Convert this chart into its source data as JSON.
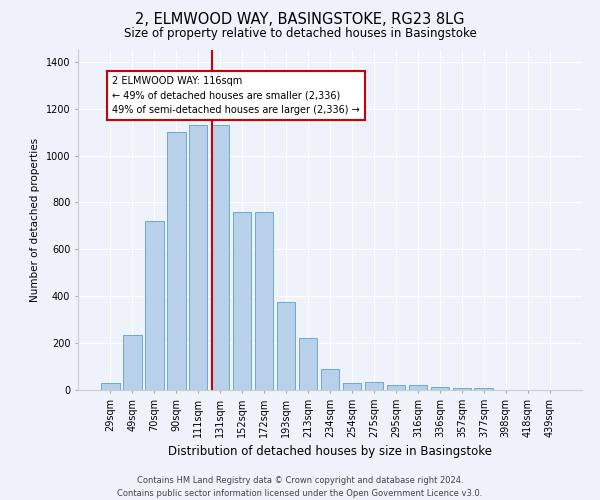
{
  "title_line1": "2, ELMWOOD WAY, BASINGSTOKE, RG23 8LG",
  "title_line2": "Size of property relative to detached houses in Basingstoke",
  "xlabel": "Distribution of detached houses by size in Basingstoke",
  "ylabel": "Number of detached properties",
  "categories": [
    "29sqm",
    "49sqm",
    "70sqm",
    "90sqm",
    "111sqm",
    "131sqm",
    "152sqm",
    "172sqm",
    "193sqm",
    "213sqm",
    "234sqm",
    "254sqm",
    "275sqm",
    "295sqm",
    "316sqm",
    "336sqm",
    "357sqm",
    "377sqm",
    "398sqm",
    "418sqm",
    "439sqm"
  ],
  "values": [
    28,
    235,
    720,
    1100,
    1130,
    1130,
    760,
    760,
    375,
    220,
    90,
    28,
    35,
    20,
    20,
    13,
    8,
    8,
    0,
    0,
    0
  ],
  "bar_color": "#b8d0ea",
  "bar_edge_color": "#6aaad4",
  "vline_x": 4.65,
  "vline_color": "#cc0000",
  "annotation_text": "2 ELMWOOD WAY: 116sqm\n← 49% of detached houses are smaller (2,336)\n49% of semi-detached houses are larger (2,336) →",
  "annotation_box_color": "#ffffff",
  "annotation_box_edge": "#cc0000",
  "footer_line1": "Contains HM Land Registry data © Crown copyright and database right 2024.",
  "footer_line2": "Contains public sector information licensed under the Open Government Licence v3.0.",
  "ylim": [
    0,
    1450
  ],
  "yticks": [
    0,
    200,
    400,
    600,
    800,
    1000,
    1200,
    1400
  ],
  "background_color": "#eef2fa",
  "grid_color": "#ffffff",
  "fig_width": 6.0,
  "fig_height": 5.0,
  "title1_fontsize": 10.5,
  "title2_fontsize": 8.5,
  "xlabel_fontsize": 8.5,
  "ylabel_fontsize": 7.5,
  "tick_fontsize": 7,
  "footer_fontsize": 6,
  "annot_fontsize": 7
}
